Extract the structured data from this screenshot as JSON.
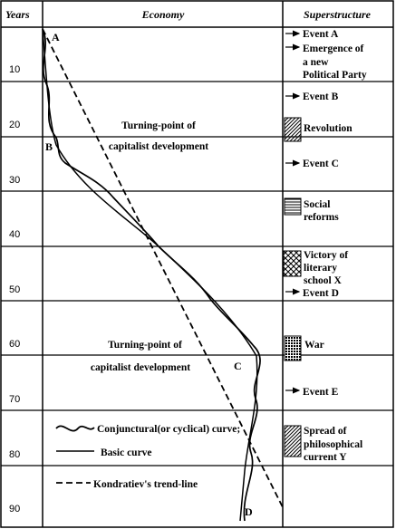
{
  "headers": {
    "years": "Years",
    "economy": "Economy",
    "superstructure": "Superstructure"
  },
  "year_ticks": [
    "10",
    "20",
    "30",
    "40",
    "50",
    "60",
    "70",
    "80",
    "90"
  ],
  "point_labels": {
    "a": "A",
    "b": "B",
    "c": "C",
    "d": "D"
  },
  "notes": {
    "turning_point_1": {
      "line1": "Turning-point of",
      "line2": "capitalist development"
    },
    "turning_point_2": {
      "line1": "Turning-point of",
      "line2": "capitalist development"
    }
  },
  "legend": {
    "conjunctural": "Conjunctural(or cyclical) curve;",
    "basic": "Basic curve",
    "trend": "Kondratiev's trend-line"
  },
  "events": {
    "event_a": "Event A",
    "party": {
      "line1": "Emergence of",
      "line2": "a new",
      "line3": "Political Party"
    },
    "event_b": "Event B",
    "revolution": "Revolution",
    "event_c": "Event C",
    "social": {
      "line1": "Social",
      "line2": "reforms"
    },
    "literary": {
      "line1": "Victory of",
      "line2": "literary",
      "line3": "school X"
    },
    "event_d": "Event D",
    "war": "War",
    "event_e": "Event E",
    "philosophical": {
      "line1": "Spread of",
      "line2": "philosophical",
      "line3": "current Y"
    }
  }
}
